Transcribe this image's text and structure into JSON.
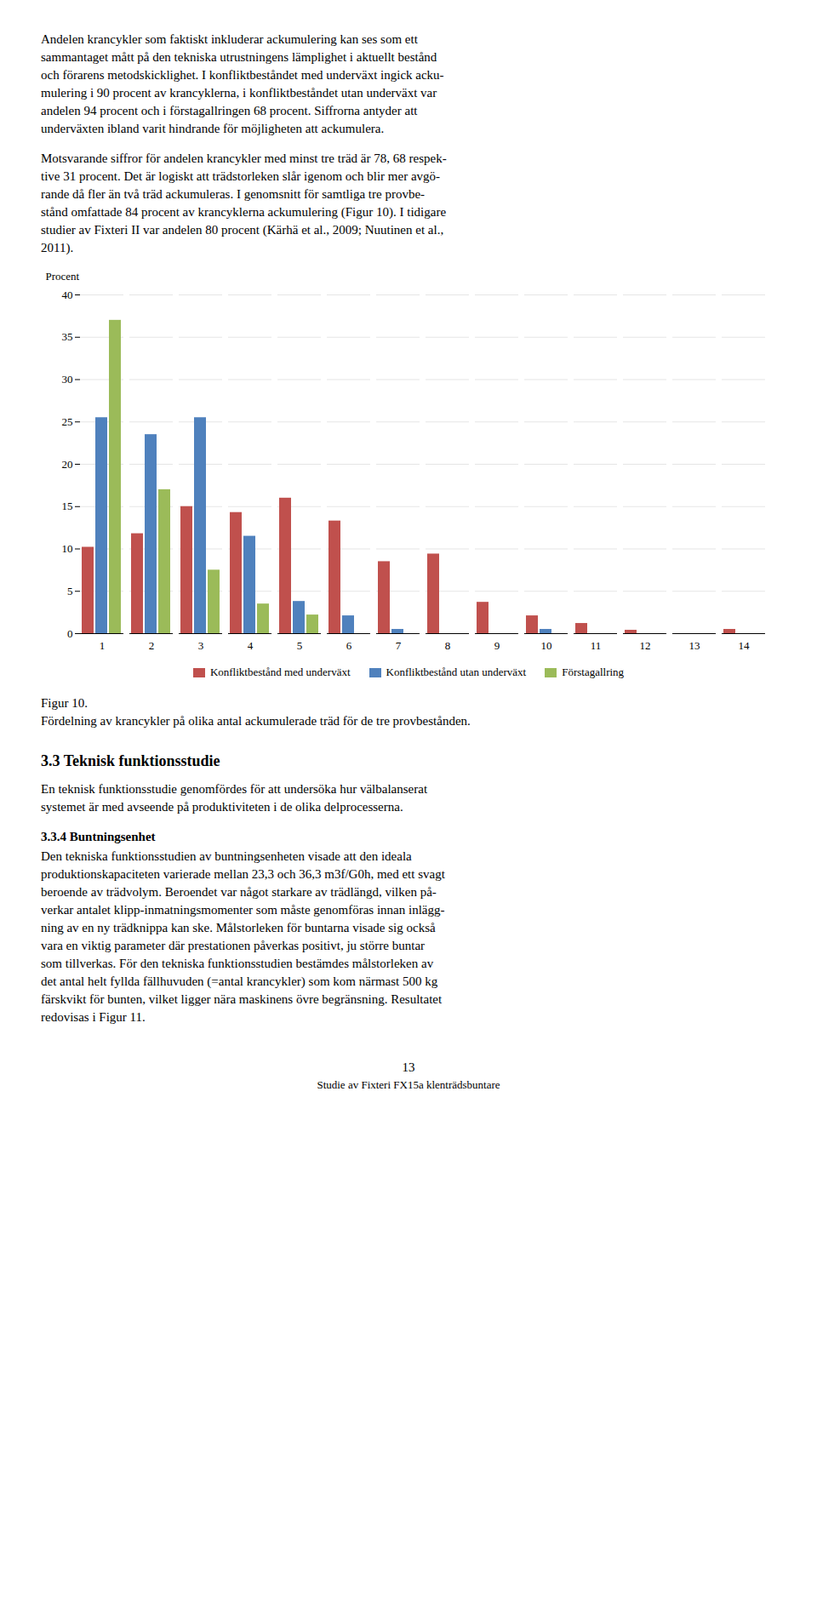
{
  "chart_data": {
    "type": "bar",
    "y_label": "Procent",
    "categories": [
      1,
      2,
      3,
      4,
      5,
      6,
      7,
      8,
      9,
      10,
      11,
      12,
      13,
      14
    ],
    "series": [
      {
        "name": "Konfliktbestånd med underväxt",
        "color": "#C0504D",
        "values": [
          10.2,
          11.8,
          15.0,
          14.3,
          16.0,
          13.3,
          8.5,
          9.4,
          3.7,
          2.1,
          1.2,
          0.4,
          0.0,
          0.5
        ]
      },
      {
        "name": "Konfliktbestånd utan underväxt",
        "color": "#4F81BD",
        "values": [
          25.5,
          23.5,
          25.5,
          11.5,
          3.8,
          2.1,
          0.5,
          0.0,
          0.0,
          0.5,
          0.0,
          0.0,
          0.0,
          0.0
        ]
      },
      {
        "name": "Förstagallring",
        "color": "#9BBB59",
        "values": [
          37.0,
          17.0,
          7.5,
          3.5,
          2.2,
          0.0,
          0.0,
          0.0,
          0.0,
          0.0,
          0.0,
          0.0,
          0.0,
          0.0
        ]
      }
    ],
    "ylim": [
      0,
      40
    ],
    "yticks": [
      0,
      5,
      10,
      15,
      20,
      25,
      30,
      35,
      40
    ],
    "grid": true,
    "legend": "bottom"
  },
  "text_above": [
    [
      "Andelen krancykler som faktiskt inkluderar ackumulering kan ses som ett",
      "sammantaget mått på den tekniska utrustningens lämplighet i aktuellt bestånd",
      "och förarens metodskicklighet. I konfliktbeståndet med underväxt ingick acku-",
      "mulering i 90 procent av krancyklerna, i konfliktbeståndet utan underväxt var",
      "andelen 94 procent och i förstagallringen 68 procent. Siffrorna antyder att",
      "underväxten ibland varit hindrande för möjligheten att ackumulera."
    ],
    [
      "Motsvarande siffror för andelen krancykler med minst tre träd är 78, 68 respek-",
      "tive 31 procent. Det är logiskt att trädstorleken slår igenom och blir mer avgö-",
      "rande då fler än två träd ackumuleras. I genomsnitt för samtliga tre provbe-",
      "stånd omfattade 84 procent av krancyklerna ackumulering (Figur 10). I tidigare",
      "studier av Fixteri II var andelen 80 procent (Kärhä et al., 2009; Nuutinen et al.,",
      "2011)."
    ]
  ],
  "caption_label": "Figur 10.",
  "caption": "Fördelning av krancykler på olika antal ackumulerade träd för de tre provbestånden.",
  "section_title": "3.3 Teknisk funktionsstudie",
  "intro_lines": [
    "En teknisk funktionsstudie genomfördes för att undersöka hur välbalanserat",
    "systemet är med avseende på produktiviteten i de olika delprocesserna."
  ],
  "subsection_title": "3.3.4 Buntningsenhet",
  "body_lines": [
    "Den tekniska funktionsstudien av buntningsenheten visade att den ideala",
    "produktionskapaciteten varierade mellan 23,3 och 36,3 m3f/G0h, med ett svagt",
    "beroende av trädvolym. Beroendet var något starkare av trädlängd, vilken på-",
    "verkar antalet klipp-inmatningsmomenter som måste genomföras innan inlägg-",
    "ning av en ny trädknippa kan ske. Målstorleken för buntarna visade sig också",
    "vara en viktig parameter där prestationen påverkas positivt, ju större buntar",
    "som tillverkas. För den tekniska funktionsstudien bestämdes målstorleken av",
    "det antal helt fyllda fällhuvuden (=antal krancykler) som kom närmast 500 kg",
    "färskvikt för bunten, vilket ligger nära maskinens övre begränsning. Resultatet",
    "redovisas i Figur 11."
  ],
  "page_number": "13",
  "page_footer": "Studie av Fixteri FX15a klenträdsbuntare"
}
